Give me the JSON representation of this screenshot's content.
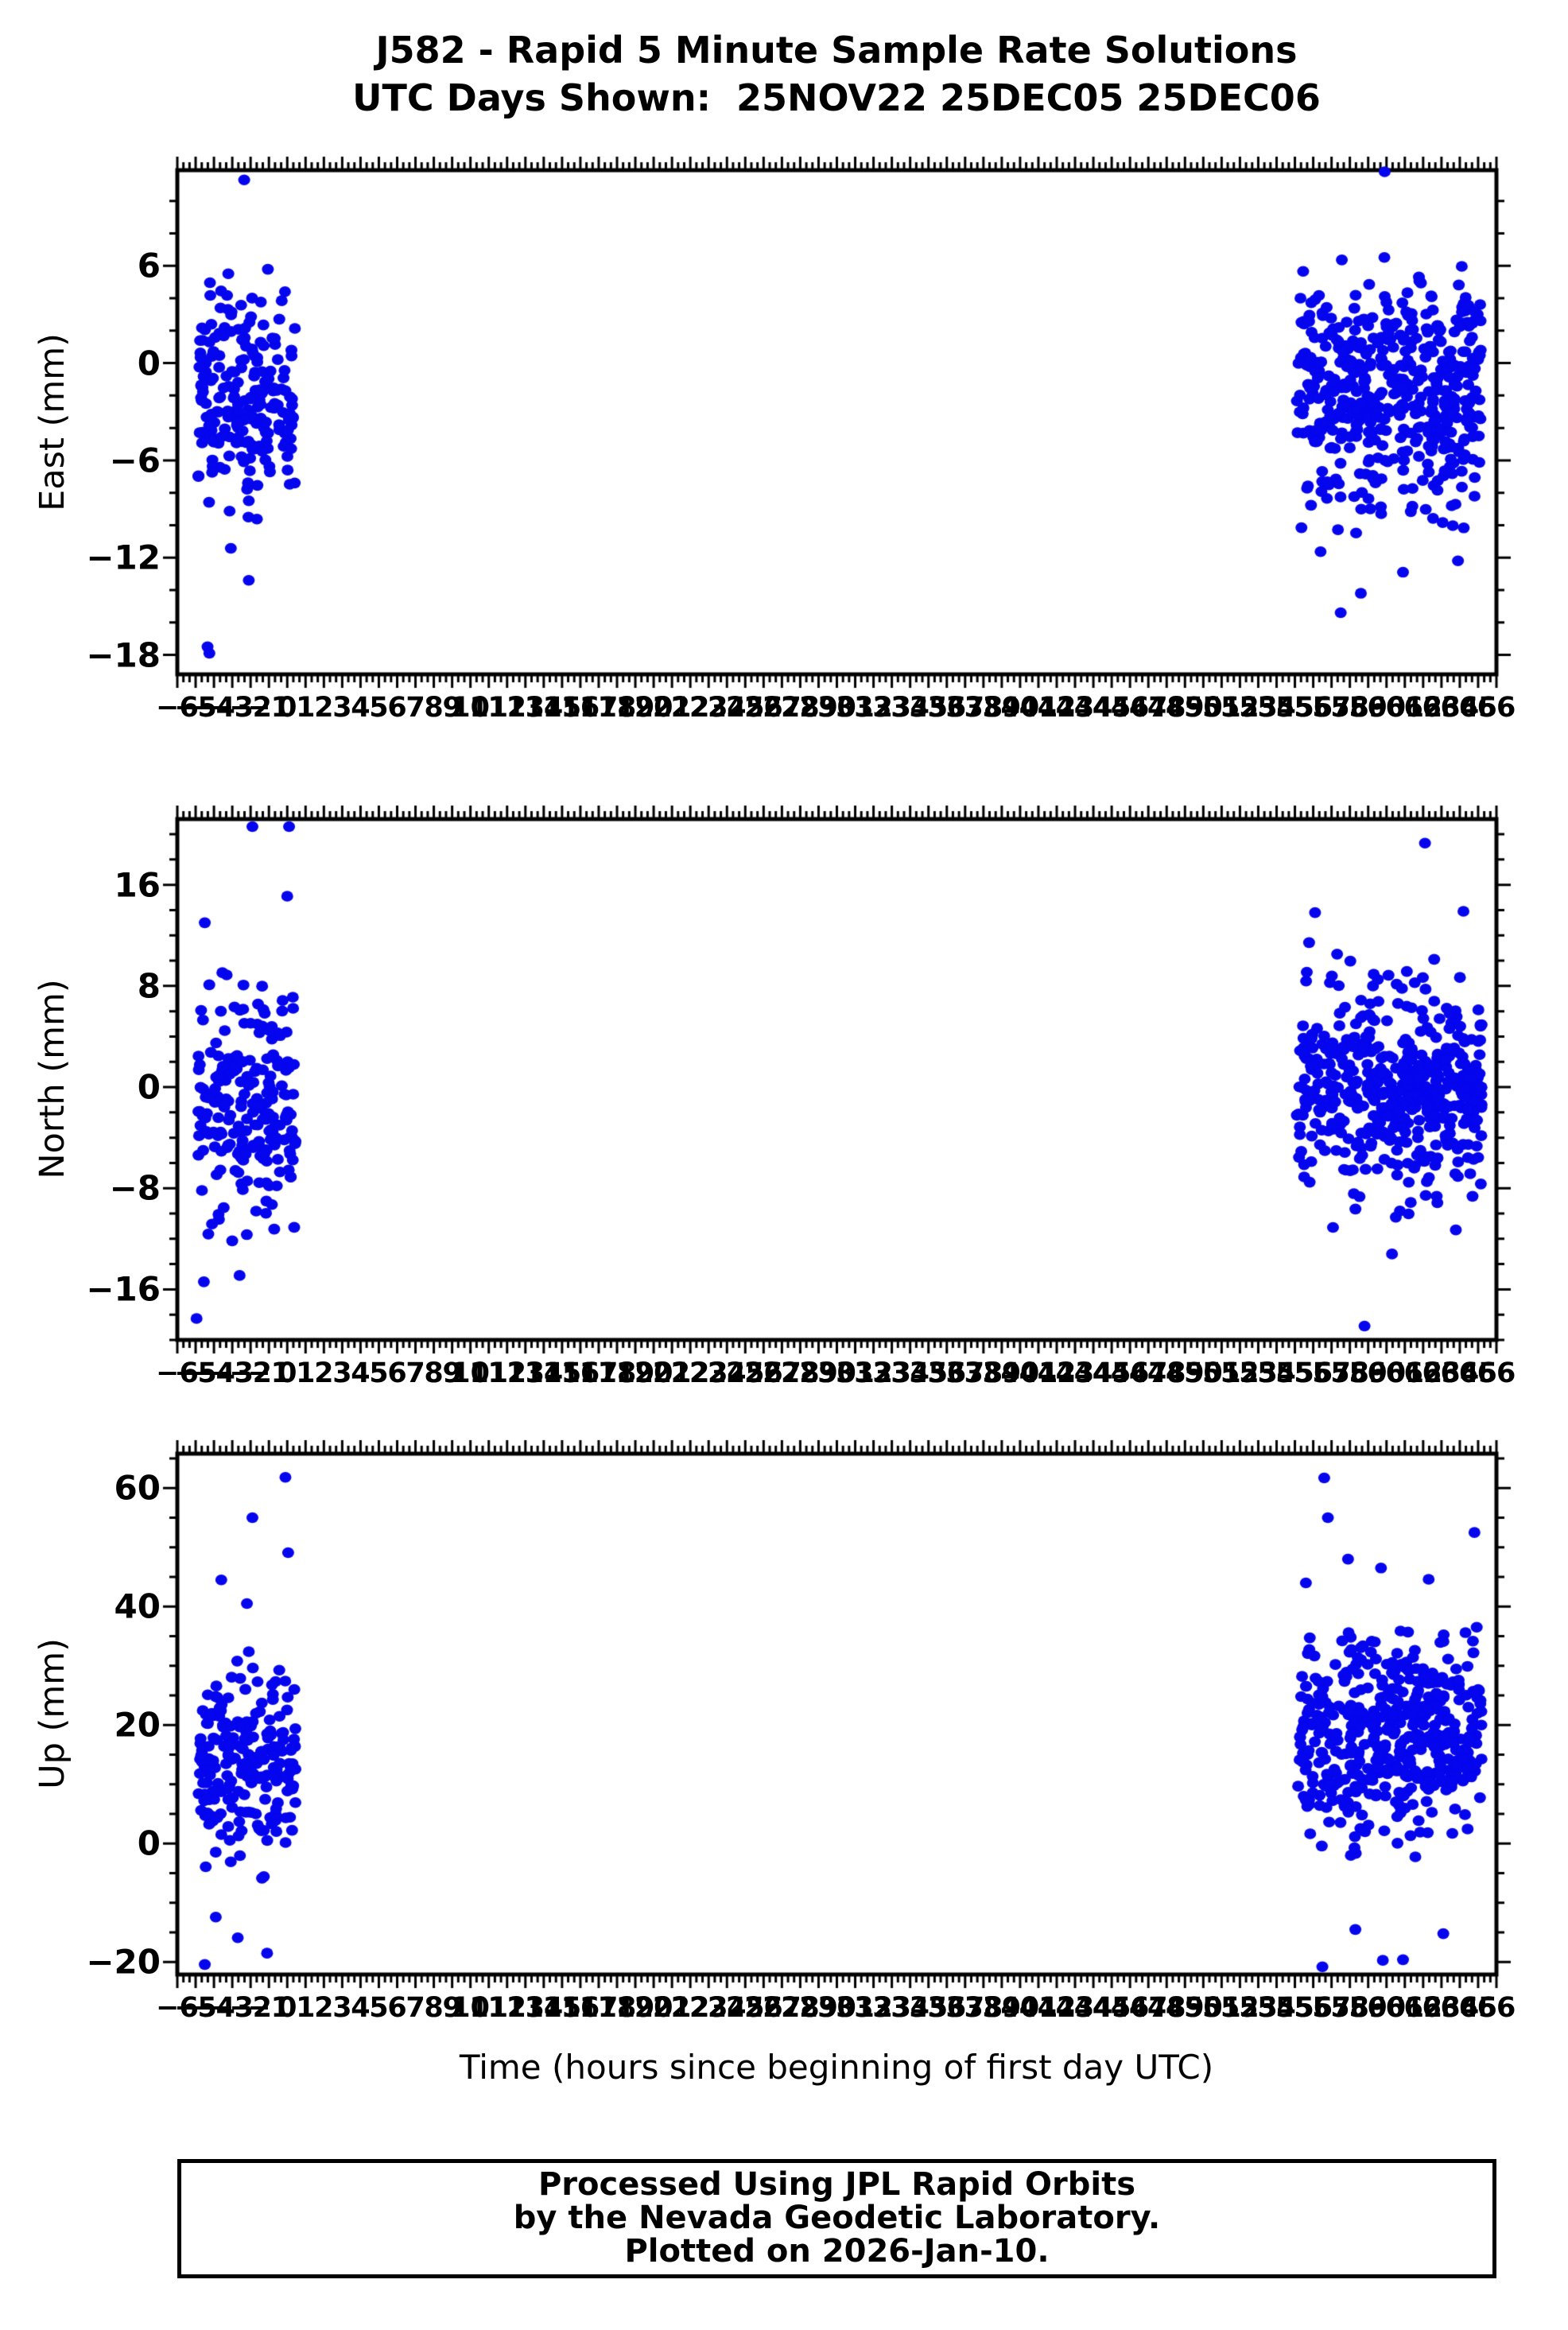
{
  "title": {
    "line1": "J582 - Rapid 5 Minute Sample Rate Solutions",
    "line2": "UTC Days Shown:  25NOV22 25DEC05 25DEC06"
  },
  "xaxis": {
    "title": "Time (hours since beginning of first day UTC)",
    "range": [
      -6,
      66
    ],
    "major_tick_step": 1,
    "minor_tick_step": 0.3333,
    "tick_labels": [
      -6,
      -5,
      -4,
      -3,
      -2,
      -1,
      0,
      1,
      2,
      3,
      4,
      5,
      6,
      7,
      8,
      9,
      10,
      11,
      12,
      13,
      14,
      15,
      16,
      17,
      18,
      19,
      20,
      21,
      22,
      23,
      24,
      25,
      26,
      27,
      28,
      29,
      30,
      31,
      32,
      33,
      34,
      35,
      36,
      37,
      38,
      39,
      40,
      41,
      42,
      43,
      44,
      45,
      46,
      47,
      48,
      49,
      50,
      51,
      52,
      53,
      54,
      55,
      56,
      57,
      58,
      59,
      60,
      61,
      62,
      63,
      64,
      65,
      66
    ]
  },
  "footer": {
    "line1": "Processed Using JPL Rapid Orbits",
    "line2": "by the Nevada Geodetic Laboratory.",
    "line3": "Plotted on 2026-Jan-10."
  },
  "style": {
    "point_color": "#0505EE",
    "frame_color": "#000000",
    "background": "#FFFFFF"
  },
  "chart_data": [
    {
      "type": "scatter",
      "ylabel": "East (mm)",
      "units": "mm",
      "ylim": [
        -19.2,
        11.9
      ],
      "yticks": [
        6,
        0,
        -6,
        -12,
        -18
      ],
      "y_minor_step": 2,
      "legend": "none",
      "grid": false,
      "clusters": [
        {
          "name": "day-25NOV22",
          "n": 215,
          "x_range": [
            -4.85,
            0.45
          ],
          "y_mean": -1.8,
          "y_std": 3.3,
          "y_clamp": [
            -12.0,
            6.6
          ],
          "seed": 101,
          "x_pow": 1.0
        },
        {
          "name": "days-25DEC05-06",
          "n": 490,
          "x_range": [
            55.1,
            65.2
          ],
          "y_mean": -1.9,
          "y_std": 3.6,
          "y_clamp": [
            -12.6,
            6.9
          ],
          "seed": 102,
          "x_pow": 0.9
        }
      ],
      "outliers": [
        [
          -2.35,
          11.3
        ],
        [
          -4.35,
          -17.5
        ],
        [
          -4.25,
          -17.9
        ],
        [
          -2.1,
          -13.4
        ],
        [
          59.9,
          11.8
        ],
        [
          57.5,
          -15.4
        ],
        [
          60.9,
          -12.9
        ],
        [
          63.9,
          -12.2
        ],
        [
          58.6,
          -14.2
        ]
      ]
    },
    {
      "type": "scatter",
      "ylabel": "North (mm)",
      "units": "mm",
      "ylim": [
        -20.0,
        21.2
      ],
      "yticks": [
        16,
        8,
        0,
        -8,
        -16
      ],
      "y_minor_step": 2,
      "legend": "none",
      "grid": false,
      "clusters": [
        {
          "name": "day-25NOV22",
          "n": 215,
          "x_range": [
            -4.85,
            0.45
          ],
          "y_mean": -1.5,
          "y_std": 4.4,
          "y_clamp": [
            -12.6,
            12.2
          ],
          "seed": 201,
          "x_pow": 1.0
        },
        {
          "name": "days-25DEC05-06",
          "n": 490,
          "x_range": [
            55.1,
            65.2
          ],
          "y_mean": 0.2,
          "y_std": 4.1,
          "y_clamp": [
            -11.5,
            12.8
          ],
          "seed": 202,
          "x_pow": 0.9
        }
      ],
      "outliers": [
        [
          -1.9,
          20.6
        ],
        [
          0.1,
          20.6
        ],
        [
          0.0,
          15.1
        ],
        [
          -4.5,
          13.0
        ],
        [
          -4.95,
          -18.3
        ],
        [
          -2.6,
          -14.9
        ],
        [
          -4.55,
          -15.4
        ],
        [
          62.1,
          19.3
        ],
        [
          58.8,
          -18.9
        ],
        [
          56.1,
          13.8
        ],
        [
          64.2,
          13.9
        ],
        [
          60.3,
          -13.2
        ]
      ]
    },
    {
      "type": "scatter",
      "ylabel": "Up (mm)",
      "units": "mm",
      "ylim": [
        -22.1,
        65.8
      ],
      "yticks": [
        60,
        40,
        20,
        0,
        -20
      ],
      "y_minor_step": 5,
      "legend": "none",
      "grid": false,
      "clusters": [
        {
          "name": "day-25NOV22",
          "n": 215,
          "x_range": [
            -4.85,
            0.45
          ],
          "y_mean": 15.0,
          "y_std": 8.5,
          "y_clamp": [
            -10.0,
            37.0
          ],
          "seed": 301,
          "x_pow": 1.0
        },
        {
          "name": "days-25DEC05-06",
          "n": 490,
          "x_range": [
            55.1,
            65.2
          ],
          "y_mean": 18.5,
          "y_std": 8.0,
          "y_clamp": [
            -4.5,
            37.5
          ],
          "seed": 302,
          "x_pow": 0.9
        }
      ],
      "outliers": [
        [
          -0.1,
          61.8
        ],
        [
          -1.9,
          55.0
        ],
        [
          0.05,
          49.1
        ],
        [
          -3.6,
          44.5
        ],
        [
          -2.2,
          40.5
        ],
        [
          -3.9,
          -12.4
        ],
        [
          -2.7,
          -15.9
        ],
        [
          -1.1,
          -18.5
        ],
        [
          -4.5,
          -20.4
        ],
        [
          56.6,
          61.7
        ],
        [
          56.8,
          55.0
        ],
        [
          64.8,
          52.5
        ],
        [
          57.9,
          48.0
        ],
        [
          62.3,
          44.6
        ],
        [
          59.7,
          46.5
        ],
        [
          55.6,
          44.0
        ],
        [
          56.5,
          -20.8
        ],
        [
          59.8,
          -19.7
        ],
        [
          60.9,
          -19.6
        ],
        [
          58.3,
          -14.5
        ],
        [
          63.1,
          -15.2
        ]
      ]
    }
  ]
}
